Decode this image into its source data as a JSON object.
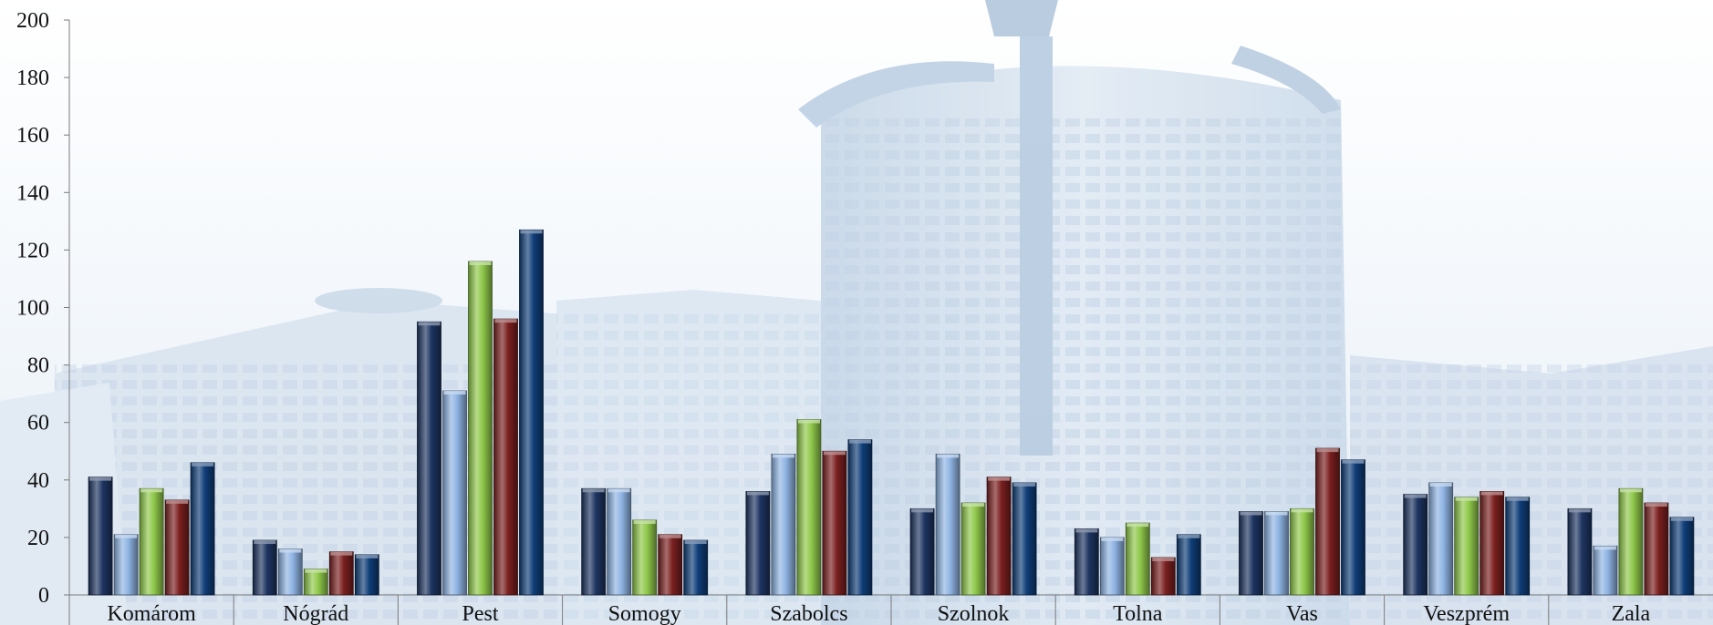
{
  "chart_data": {
    "type": "bar",
    "title": "",
    "xlabel": "",
    "ylabel": "",
    "ylim": [
      0,
      200
    ],
    "yticks": [
      0,
      20,
      40,
      60,
      80,
      100,
      120,
      140,
      160,
      180,
      200
    ],
    "grid": false,
    "legend": "none",
    "categories": [
      "Komárom",
      "Nógrád",
      "Pest",
      "Somogy",
      "Szabolcs",
      "Szolnok",
      "Tolna",
      "Vas",
      "Veszprém",
      "Zala"
    ],
    "series": [
      {
        "color": "#1d3461",
        "values": [
          41,
          19,
          95,
          37,
          36,
          30,
          23,
          29,
          35,
          30
        ]
      },
      {
        "color": "#8fb4e3",
        "values": [
          21,
          16,
          71,
          37,
          49,
          49,
          20,
          29,
          39,
          17
        ]
      },
      {
        "color": "#8fc84a",
        "values": [
          37,
          9,
          116,
          26,
          61,
          32,
          25,
          30,
          34,
          37
        ]
      },
      {
        "color": "#7a1f1f",
        "values": [
          33,
          15,
          96,
          21,
          50,
          41,
          13,
          51,
          36,
          32
        ]
      },
      {
        "color": "#0f3d78",
        "values": [
          46,
          14,
          127,
          19,
          54,
          39,
          21,
          47,
          34,
          27
        ]
      }
    ]
  }
}
